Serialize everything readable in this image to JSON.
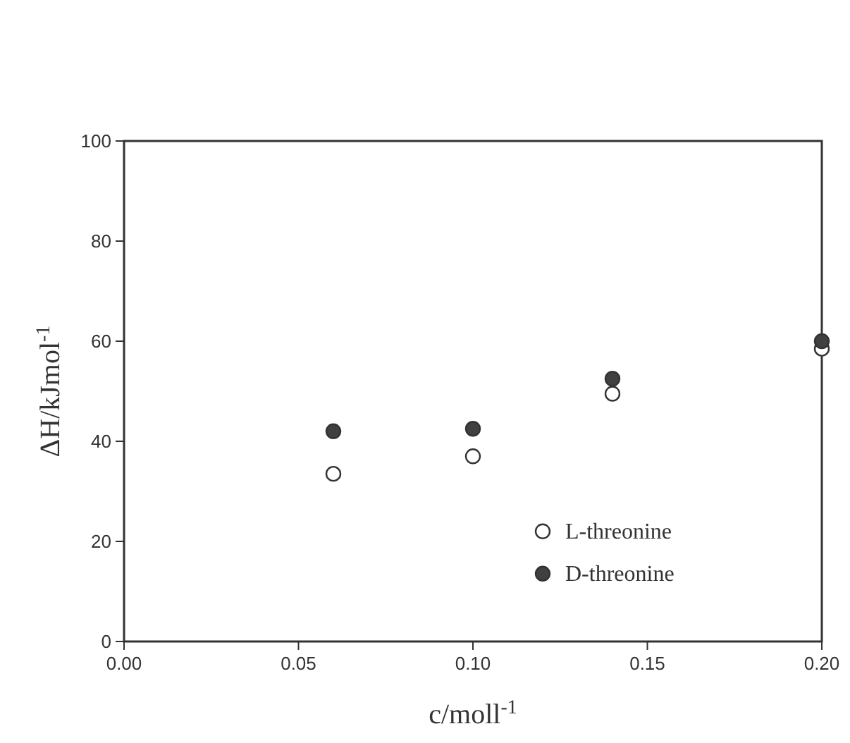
{
  "chart_data": {
    "type": "scatter",
    "xlabel": "c/moll$^{-1}$",
    "ylabel": "ΔH/kJmol$^{-1}$",
    "x": [
      0.06,
      0.1,
      0.14,
      0.2
    ],
    "series": [
      {
        "name": "L-threonine",
        "color": "#ffffff",
        "values": [
          33.5,
          37,
          49.5,
          58.5
        ]
      },
      {
        "name": "D-threonine",
        "color": "#404040",
        "values": [
          42,
          42.5,
          52.5,
          60
        ]
      }
    ],
    "xlim": [
      0,
      0.2
    ],
    "ylim": [
      0,
      100
    ],
    "xticks": [
      {
        "value": 0,
        "label": "0.00"
      },
      {
        "value": 0.05,
        "label": "0.05"
      },
      {
        "value": 0.1,
        "label": "0.10"
      },
      {
        "value": 0.15,
        "label": "0.15"
      },
      {
        "value": 0.2,
        "label": "0.20"
      }
    ],
    "yticks": [
      0,
      20,
      40,
      60,
      80,
      100
    ],
    "grid": false,
    "legend": "bottom right",
    "marker": "circle"
  }
}
